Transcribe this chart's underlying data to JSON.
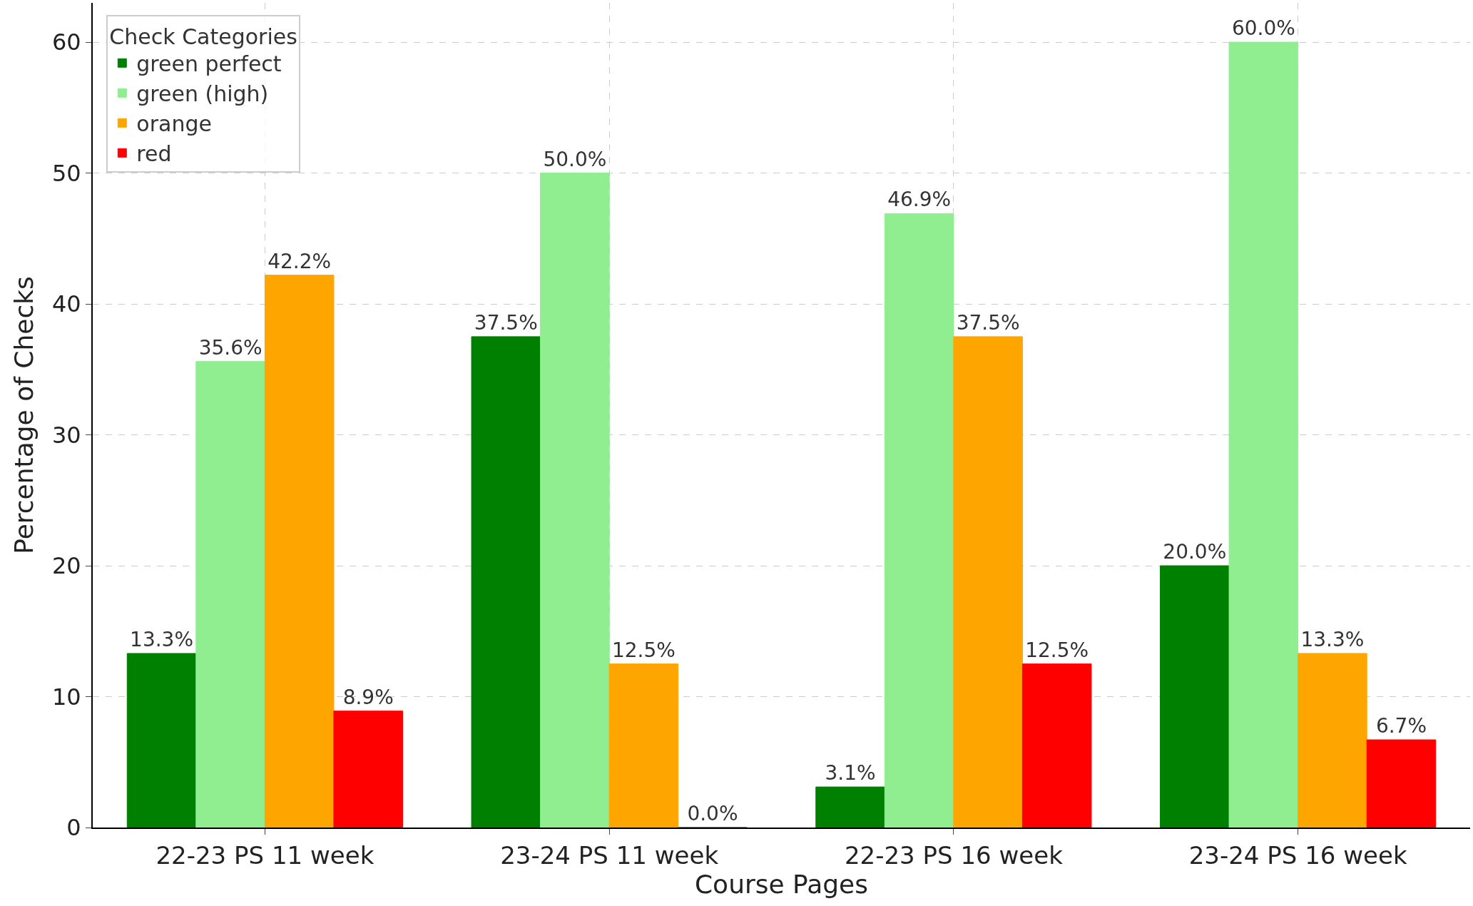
{
  "chart_data": {
    "type": "bar",
    "xlabel": "Course Pages",
    "ylabel": "Percentage of Checks",
    "legend_title": "Check Categories",
    "categories": [
      "22-23 PS 11 week",
      "23-24 PS 11 week",
      "22-23 PS 16 week",
      "23-24 PS 16 week"
    ],
    "series": [
      {
        "name": "green perfect",
        "color": "#008000",
        "values": [
          13.3,
          37.5,
          3.1,
          20.0
        ],
        "value_labels": [
          "13.3%",
          "37.5%",
          "3.1%",
          "20.0%"
        ]
      },
      {
        "name": "green (high)",
        "color": "#90ee90",
        "values": [
          35.6,
          50.0,
          46.9,
          60.0
        ],
        "value_labels": [
          "35.6%",
          "50.0%",
          "46.9%",
          "60.0%"
        ]
      },
      {
        "name": "orange",
        "color": "#ffa500",
        "values": [
          42.2,
          12.5,
          37.5,
          13.3
        ],
        "value_labels": [
          "42.2%",
          "12.5%",
          "37.5%",
          "13.3%"
        ]
      },
      {
        "name": "red",
        "color": "#ff0000",
        "values": [
          8.9,
          0.0,
          12.5,
          6.7
        ],
        "value_labels": [
          "8.9%",
          "0.0%",
          "12.5%",
          "6.7%"
        ]
      }
    ],
    "ylim": [
      0,
      63
    ],
    "yticks": [
      0,
      10,
      20,
      30,
      40,
      50,
      60
    ],
    "grid": true,
    "legend": "top left"
  }
}
